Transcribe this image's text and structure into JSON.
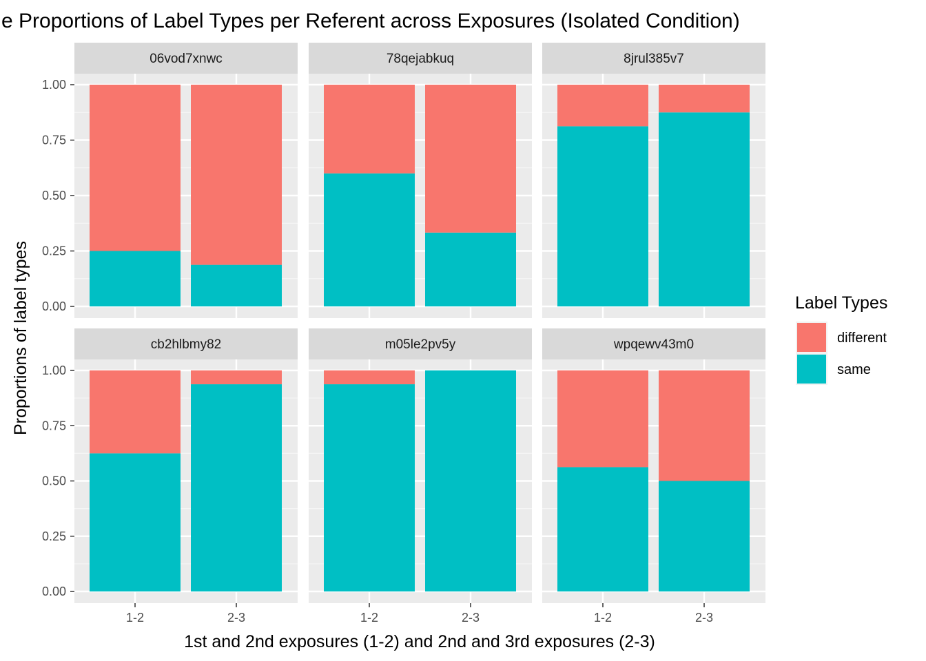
{
  "chart_data": {
    "type": "bar",
    "stacked": true,
    "normalized": true,
    "title": "e Proportions of Label Types per Referent across Exposures (Isolated Condition)",
    "xlabel": "1st and 2nd exposures (1-2) and 2nd and 3rd exposures (2-3)",
    "ylabel": "Proportions of label types",
    "ylim": [
      0,
      1
    ],
    "y_ticks": [
      "0.00",
      "0.25",
      "0.50",
      "0.75",
      "1.00"
    ],
    "categories": [
      "1-2",
      "2-3"
    ],
    "grid": true,
    "legend": {
      "title": "Label Types",
      "position": "right",
      "entries": [
        {
          "name": "different",
          "color": "#F8766D"
        },
        {
          "name": "same",
          "color": "#00BFC4"
        }
      ]
    },
    "facets": [
      {
        "name": "06vod7xnwc",
        "series": [
          {
            "name": "same",
            "values": [
              0.25,
              0.1875
            ]
          },
          {
            "name": "different",
            "values": [
              0.75,
              0.8125
            ]
          }
        ]
      },
      {
        "name": "78qejabkuq",
        "series": [
          {
            "name": "same",
            "values": [
              0.6,
              0.333
            ]
          },
          {
            "name": "different",
            "values": [
              0.4,
              0.667
            ]
          }
        ]
      },
      {
        "name": "8jrul385v7",
        "series": [
          {
            "name": "same",
            "values": [
              0.8125,
              0.875
            ]
          },
          {
            "name": "different",
            "values": [
              0.1875,
              0.125
            ]
          }
        ]
      },
      {
        "name": "cb2hlbmy82",
        "series": [
          {
            "name": "same",
            "values": [
              0.625,
              0.9375
            ]
          },
          {
            "name": "different",
            "values": [
              0.375,
              0.0625
            ]
          }
        ]
      },
      {
        "name": "m05le2pv5y",
        "series": [
          {
            "name": "same",
            "values": [
              0.9375,
              1.0
            ]
          },
          {
            "name": "different",
            "values": [
              0.0625,
              0.0
            ]
          }
        ]
      },
      {
        "name": "wpqewv43m0",
        "series": [
          {
            "name": "same",
            "values": [
              0.5625,
              0.5
            ]
          },
          {
            "name": "different",
            "values": [
              0.4375,
              0.5
            ]
          }
        ]
      }
    ]
  }
}
